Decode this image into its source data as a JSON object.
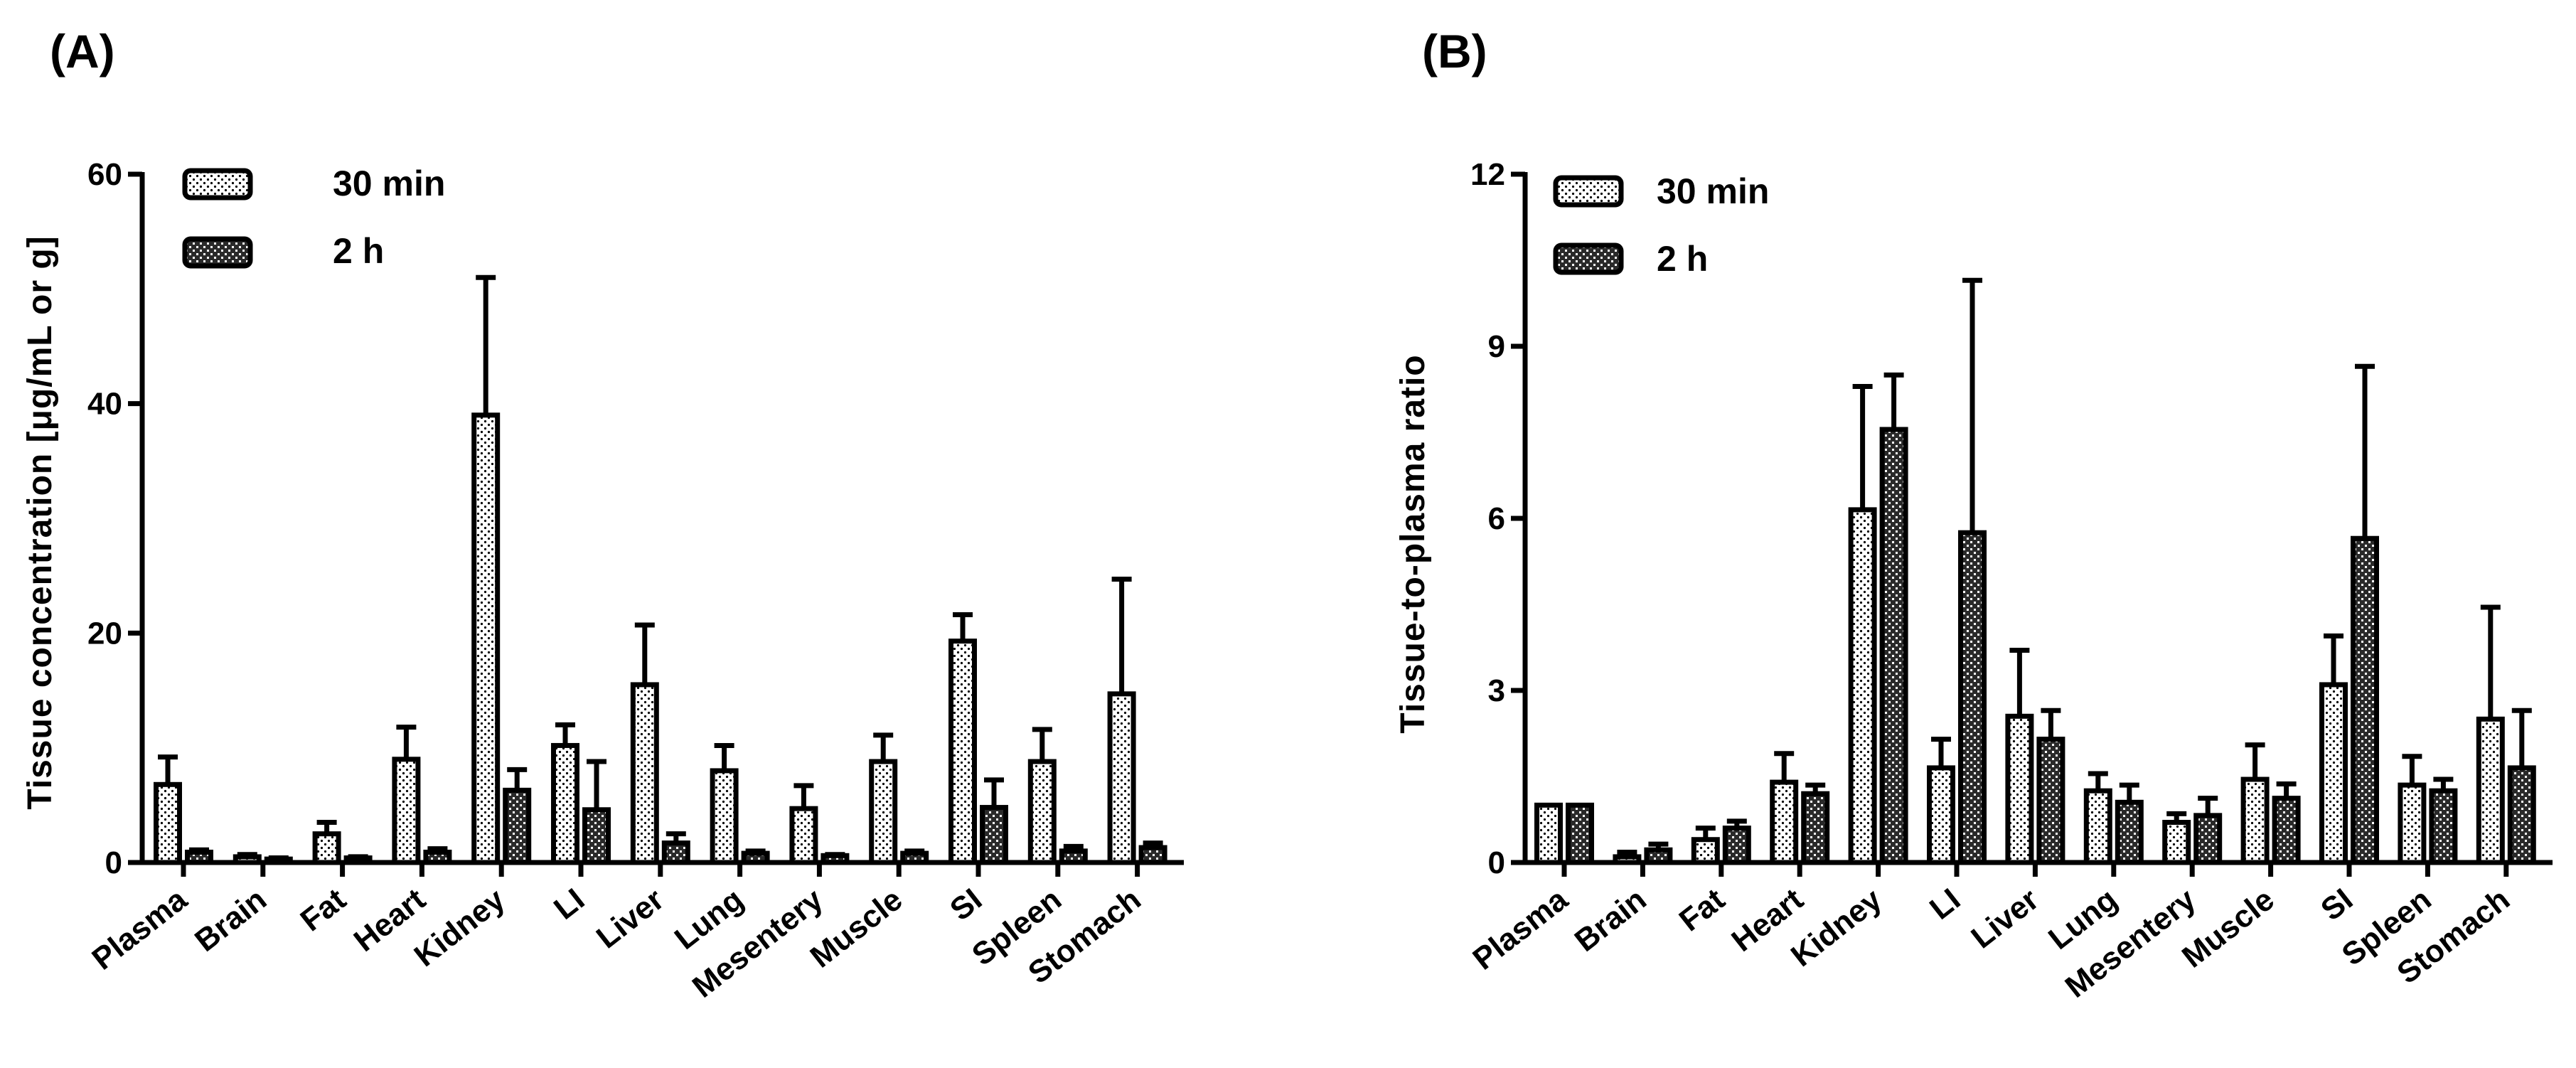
{
  "chart_data": [
    {
      "type": "bar",
      "panel_label": "(A)",
      "ylabel": "Tissue concentration [μg/mL or g]",
      "xlabel": "",
      "ylim": [
        0,
        60
      ],
      "yticks": [
        0,
        20,
        40,
        60
      ],
      "categories": [
        "Plasma",
        "Brain",
        "Fat",
        "Heart",
        "Kidney",
        "LI",
        "Liver",
        "Lung",
        "Mesentery",
        "Muscle",
        "SI",
        "Spleen",
        "Stomach"
      ],
      "legend_position": "top-left",
      "series": [
        {
          "name": "30 min",
          "values": [
            6.8,
            0.5,
            2.5,
            9.0,
            39.0,
            10.2,
            15.5,
            8.0,
            4.7,
            8.8,
            19.3,
            8.8,
            14.7
          ],
          "errors": [
            2.4,
            0.2,
            1.0,
            2.8,
            12.0,
            1.8,
            5.2,
            2.2,
            2.0,
            2.3,
            2.3,
            2.8,
            10.0
          ],
          "pattern": "light"
        },
        {
          "name": "2 h",
          "values": [
            0.9,
            0.3,
            0.4,
            0.9,
            6.3,
            4.6,
            1.7,
            0.8,
            0.6,
            0.8,
            4.8,
            1.0,
            1.3
          ],
          "errors": [
            0.2,
            0.1,
            0.1,
            0.3,
            1.8,
            4.2,
            0.8,
            0.2,
            0.1,
            0.2,
            2.4,
            0.4,
            0.4
          ],
          "pattern": "dark"
        }
      ]
    },
    {
      "type": "bar",
      "panel_label": "(B)",
      "ylabel": "Tissue-to-plasma ratio",
      "xlabel": "",
      "ylim": [
        0,
        12
      ],
      "yticks": [
        0,
        3,
        6,
        9,
        12
      ],
      "categories": [
        "Plasma",
        "Brain",
        "Fat",
        "Heart",
        "Kidney",
        "LI",
        "Liver",
        "Lung",
        "Mesentery",
        "Muscle",
        "SI",
        "Spleen",
        "Stomach"
      ],
      "legend_position": "top-left",
      "series": [
        {
          "name": "30 min",
          "values": [
            1.0,
            0.1,
            0.4,
            1.4,
            6.15,
            1.65,
            2.55,
            1.25,
            0.7,
            1.45,
            3.1,
            1.35,
            2.5
          ],
          "errors": [
            0.0,
            0.08,
            0.2,
            0.5,
            2.15,
            0.5,
            1.15,
            0.3,
            0.15,
            0.6,
            0.85,
            0.5,
            1.95
          ],
          "pattern": "light"
        },
        {
          "name": "2 h",
          "values": [
            1.0,
            0.22,
            0.6,
            1.2,
            7.55,
            5.75,
            2.15,
            1.05,
            0.82,
            1.12,
            5.65,
            1.25,
            1.65
          ],
          "errors": [
            0.0,
            0.1,
            0.12,
            0.15,
            0.95,
            4.4,
            0.5,
            0.3,
            0.3,
            0.25,
            3.0,
            0.2,
            1.0
          ],
          "pattern": "dark"
        }
      ]
    }
  ]
}
